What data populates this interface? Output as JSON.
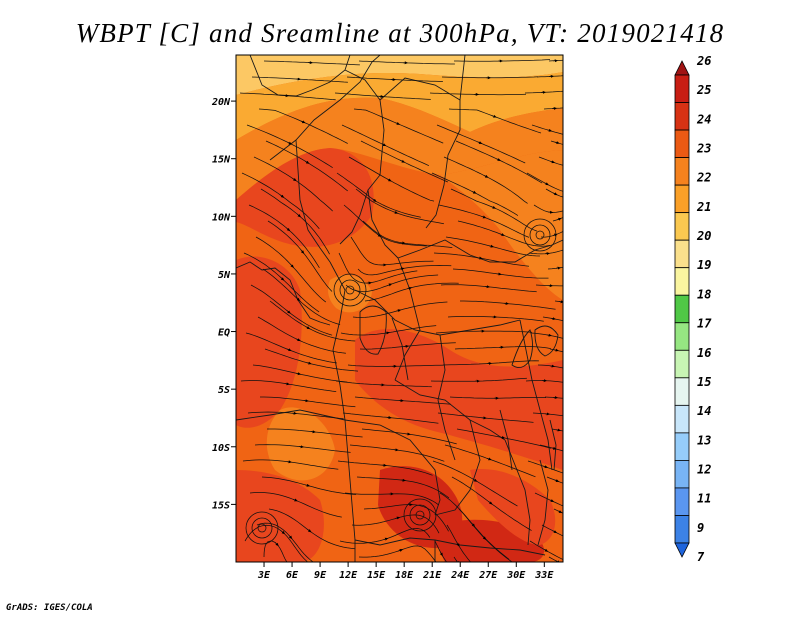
{
  "title": "WBPT [C] and Sreamline at 300hPa, VT: 2019021418",
  "credit": "GrADS: IGES/COLA",
  "map": {
    "lat_range": [
      -20,
      24
    ],
    "lon_range": [
      0,
      35
    ],
    "lat_ticks": [
      {
        "value": 20,
        "label": "20N"
      },
      {
        "value": 15,
        "label": "15N"
      },
      {
        "value": 10,
        "label": "10N"
      },
      {
        "value": 5,
        "label": "5N"
      },
      {
        "value": 0,
        "label": "EQ"
      },
      {
        "value": -5,
        "label": "5S"
      },
      {
        "value": -10,
        "label": "10S"
      },
      {
        "value": -15,
        "label": "15S"
      }
    ],
    "lon_ticks": [
      {
        "value": 3,
        "label": "3E"
      },
      {
        "value": 6,
        "label": "6E"
      },
      {
        "value": 9,
        "label": "9E"
      },
      {
        "value": 12,
        "label": "12E"
      },
      {
        "value": 15,
        "label": "15E"
      },
      {
        "value": 18,
        "label": "18E"
      },
      {
        "value": 21,
        "label": "21E"
      },
      {
        "value": 24,
        "label": "24E"
      },
      {
        "value": 27,
        "label": "27E"
      },
      {
        "value": 30,
        "label": "30E"
      },
      {
        "value": 33,
        "label": "33E"
      }
    ],
    "fill_colors": {
      "base": "#f06414",
      "warm": "#e8461e",
      "hot": "#d12814",
      "mild": "#f5821e",
      "cool": "#faaa32",
      "coolest": "#fcc864"
    }
  },
  "colorbar": {
    "levels": [
      "7",
      "9",
      "11",
      "12",
      "13",
      "14",
      "15",
      "16",
      "17",
      "18",
      "19",
      "20",
      "21",
      "22",
      "23",
      "24",
      "25",
      "26"
    ],
    "colors": [
      "#1e64dc",
      "#3c82e6",
      "#5a96f0",
      "#78b4f5",
      "#96cdfa",
      "#c8e6fa",
      "#e6f5f0",
      "#c8f5b4",
      "#96e682",
      "#50c846",
      "#faf5a0",
      "#fae08c",
      "#fac850",
      "#faa028",
      "#f5821e",
      "#eb5a14",
      "#d73214",
      "#c81e14",
      "#a01414"
    ]
  }
}
